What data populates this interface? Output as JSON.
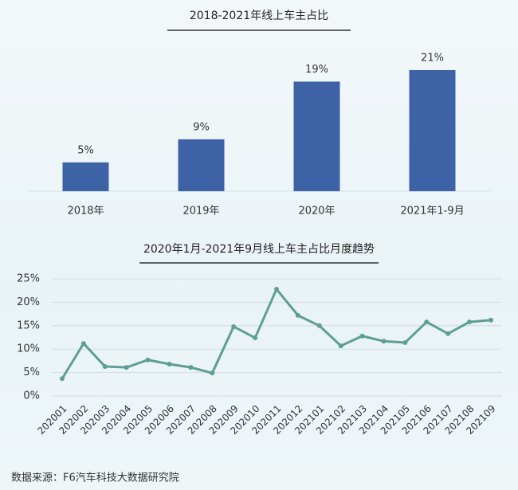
{
  "chart_data": [
    {
      "type": "bar",
      "title": "2018-2021年线上车主占比",
      "categories": [
        "2018年",
        "2019年",
        "2020年",
        "2021年1-9月"
      ],
      "values": [
        5,
        9,
        19,
        21
      ],
      "value_labels": [
        "5%",
        "9%",
        "19%",
        "21%"
      ],
      "color": "#3d63a6",
      "ylim": [
        0,
        25
      ]
    },
    {
      "type": "line",
      "title": "2020年1月-2021年9月线上车主占比月度趋势",
      "categories": [
        "202001",
        "202002",
        "202003",
        "202004",
        "202005",
        "202006",
        "202007",
        "202008",
        "202009",
        "202010",
        "202011",
        "202012",
        "202101",
        "202102",
        "202103",
        "202104",
        "202105",
        "202106",
        "202107",
        "202108",
        "202109"
      ],
      "values": [
        3.7,
        11.2,
        6.3,
        6.1,
        7.7,
        6.8,
        6.1,
        4.9,
        14.8,
        12.4,
        22.8,
        17.2,
        15.0,
        10.7,
        12.8,
        11.7,
        11.4,
        15.8,
        13.3,
        15.8,
        16.2
      ],
      "color": "#5e9f95",
      "ylim": [
        0,
        25
      ],
      "yticks": [
        {
          "value": 0,
          "label": "0%"
        },
        {
          "value": 5,
          "label": "5%"
        },
        {
          "value": 10,
          "label": "10%"
        },
        {
          "value": 15,
          "label": "15%"
        },
        {
          "value": 20,
          "label": "20%"
        },
        {
          "value": 25,
          "label": "25%"
        }
      ],
      "grid": true
    }
  ],
  "source": "数据来源：F6汽车科技大数据研究院"
}
